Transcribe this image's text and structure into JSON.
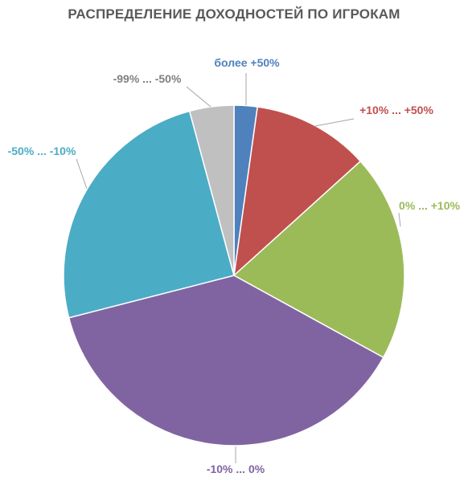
{
  "chart_data": {
    "type": "pie",
    "title": "РАСПРЕДЕЛЕНИЕ ДОХОДНОСТЕЙ ПО ИГРОКАМ",
    "slices": [
      {
        "label": "более +50%",
        "value": 2.2,
        "color": "#4F81BD"
      },
      {
        "label": "+10% ... +50%",
        "value": 11.1,
        "color": "#C0504D"
      },
      {
        "label": "0% ... +10%",
        "value": 19.7,
        "color": "#9BBB59"
      },
      {
        "label": "-10% ... 0%",
        "value": 38.0,
        "color": "#8064A2"
      },
      {
        "label": "-50% ... -10%",
        "value": 24.8,
        "color": "#4BACC6"
      },
      {
        "label": "-99% ... -50%",
        "value": 4.2,
        "color": "#C0C0C0"
      }
    ]
  }
}
